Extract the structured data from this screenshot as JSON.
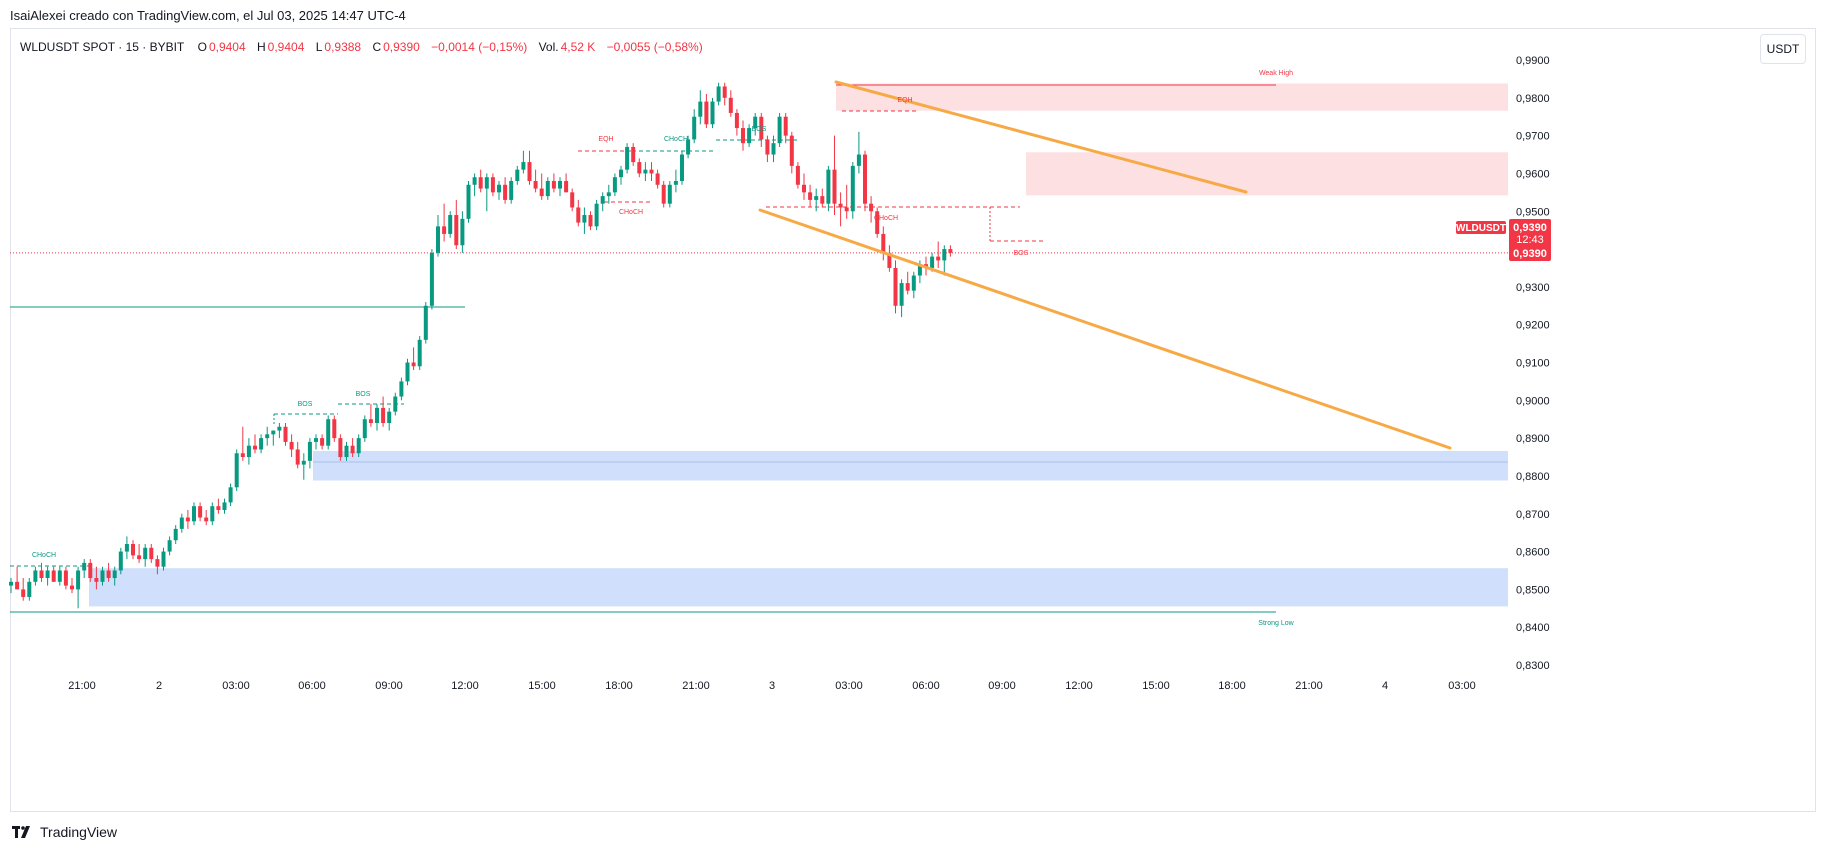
{
  "header": {
    "credit": "IsaiAlexei creado con TradingView.com, el Jul 03, 2025 14:47 UTC-4"
  },
  "legend": {
    "symbol": "WLDUSDT SPOT · 15 · BYBIT",
    "o_label": "O",
    "o_value": "0,9404",
    "h_label": "H",
    "h_value": "0,9404",
    "l_label": "L",
    "l_value": "0,9388",
    "c_label": "C",
    "c_value": "0,9390",
    "change": "−0,0014 (−0,15%)",
    "vol_label": "Vol.",
    "vol_value": "4,52 K",
    "vol_change": "−0,0055 (−0,58%)"
  },
  "unit_button": "USDT",
  "footer": {
    "brand": "TradingView"
  },
  "colors": {
    "up": "#089981",
    "down": "#f23645",
    "channel": "#f7a945",
    "demand": "#cfdffc",
    "supply": "#fde0e2"
  },
  "price_tag": {
    "symbol": "WLDUSDT",
    "price": "0,9390",
    "countdown": "12:43",
    "price2": "0,9390"
  },
  "chart_data": {
    "type": "candlestick",
    "y_axis": {
      "range": [
        0.826,
        0.994
      ],
      "ticks": [
        "0,9900",
        "0,9800",
        "0,9700",
        "0,9600",
        "0,9500",
        "0,9400",
        "0,9300",
        "0,9200",
        "0,9100",
        "0,9000",
        "0,8900",
        "0,8800",
        "0,8700",
        "0,8600",
        "0,8500",
        "0,8400",
        "0,8300"
      ]
    },
    "x_axis": {
      "ticks": [
        "21:00",
        "2",
        "03:00",
        "06:00",
        "09:00",
        "12:00",
        "15:00",
        "18:00",
        "21:00",
        "3",
        "03:00",
        "06:00",
        "09:00",
        "12:00",
        "15:00",
        "18:00",
        "21:00",
        "4",
        "03:00"
      ]
    },
    "last_price": 0.939,
    "candles": [
      [
        0.851,
        0.853,
        0.849,
        0.852
      ],
      [
        0.852,
        0.856,
        0.85,
        0.85
      ],
      [
        0.85,
        0.853,
        0.847,
        0.848
      ],
      [
        0.848,
        0.853,
        0.847,
        0.852
      ],
      [
        0.852,
        0.856,
        0.851,
        0.855
      ],
      [
        0.855,
        0.857,
        0.852,
        0.853
      ],
      [
        0.853,
        0.856,
        0.851,
        0.855
      ],
      [
        0.855,
        0.856,
        0.852,
        0.852
      ],
      [
        0.852,
        0.856,
        0.851,
        0.855
      ],
      [
        0.855,
        0.856,
        0.85,
        0.851
      ],
      [
        0.851,
        0.853,
        0.849,
        0.85
      ],
      [
        0.85,
        0.856,
        0.845,
        0.855
      ],
      [
        0.855,
        0.858,
        0.853,
        0.857
      ],
      [
        0.857,
        0.858,
        0.852,
        0.853
      ],
      [
        0.853,
        0.856,
        0.85,
        0.852
      ],
      [
        0.852,
        0.856,
        0.851,
        0.855
      ],
      [
        0.855,
        0.857,
        0.852,
        0.853
      ],
      [
        0.853,
        0.856,
        0.851,
        0.855
      ],
      [
        0.855,
        0.861,
        0.854,
        0.86
      ],
      [
        0.86,
        0.864,
        0.858,
        0.862
      ],
      [
        0.862,
        0.863,
        0.858,
        0.859
      ],
      [
        0.859,
        0.862,
        0.857,
        0.858
      ],
      [
        0.858,
        0.862,
        0.856,
        0.861
      ],
      [
        0.861,
        0.862,
        0.857,
        0.858
      ],
      [
        0.858,
        0.859,
        0.854,
        0.856
      ],
      [
        0.856,
        0.861,
        0.855,
        0.86
      ],
      [
        0.86,
        0.864,
        0.859,
        0.863
      ],
      [
        0.863,
        0.867,
        0.862,
        0.866
      ],
      [
        0.866,
        0.87,
        0.865,
        0.869
      ],
      [
        0.869,
        0.871,
        0.866,
        0.868
      ],
      [
        0.868,
        0.873,
        0.867,
        0.872
      ],
      [
        0.872,
        0.873,
        0.868,
        0.869
      ],
      [
        0.869,
        0.871,
        0.867,
        0.868
      ],
      [
        0.868,
        0.873,
        0.867,
        0.872
      ],
      [
        0.872,
        0.874,
        0.87,
        0.871
      ],
      [
        0.871,
        0.874,
        0.87,
        0.873
      ],
      [
        0.873,
        0.878,
        0.872,
        0.877
      ],
      [
        0.877,
        0.887,
        0.876,
        0.886
      ],
      [
        0.886,
        0.893,
        0.884,
        0.885
      ],
      [
        0.885,
        0.89,
        0.883,
        0.888
      ],
      [
        0.888,
        0.891,
        0.886,
        0.887
      ],
      [
        0.887,
        0.891,
        0.886,
        0.89
      ],
      [
        0.89,
        0.893,
        0.888,
        0.891
      ],
      [
        0.891,
        0.892,
        0.888,
        0.892
      ],
      [
        0.892,
        0.894,
        0.89,
        0.893
      ],
      [
        0.893,
        0.894,
        0.888,
        0.889
      ],
      [
        0.889,
        0.891,
        0.885,
        0.887
      ],
      [
        0.887,
        0.889,
        0.882,
        0.883
      ],
      [
        0.883,
        0.886,
        0.879,
        0.884
      ],
      [
        0.884,
        0.89,
        0.882,
        0.889
      ],
      [
        0.889,
        0.891,
        0.887,
        0.89
      ],
      [
        0.89,
        0.891,
        0.887,
        0.888
      ],
      [
        0.888,
        0.896,
        0.887,
        0.895
      ],
      [
        0.895,
        0.896,
        0.889,
        0.89
      ],
      [
        0.89,
        0.891,
        0.884,
        0.885
      ],
      [
        0.885,
        0.889,
        0.884,
        0.888
      ],
      [
        0.888,
        0.89,
        0.885,
        0.886
      ],
      [
        0.886,
        0.891,
        0.885,
        0.89
      ],
      [
        0.89,
        0.896,
        0.889,
        0.895
      ],
      [
        0.895,
        0.899,
        0.893,
        0.894
      ],
      [
        0.894,
        0.899,
        0.892,
        0.898
      ],
      [
        0.898,
        0.901,
        0.893,
        0.894
      ],
      [
        0.894,
        0.898,
        0.892,
        0.897
      ],
      [
        0.897,
        0.902,
        0.896,
        0.901
      ],
      [
        0.901,
        0.906,
        0.9,
        0.905
      ],
      [
        0.905,
        0.911,
        0.904,
        0.91
      ],
      [
        0.91,
        0.914,
        0.908,
        0.909
      ],
      [
        0.909,
        0.917,
        0.908,
        0.916
      ],
      [
        0.916,
        0.926,
        0.915,
        0.925
      ],
      [
        0.925,
        0.94,
        0.924,
        0.939
      ],
      [
        0.939,
        0.949,
        0.938,
        0.946
      ],
      [
        0.946,
        0.952,
        0.942,
        0.944
      ],
      [
        0.944,
        0.95,
        0.943,
        0.949
      ],
      [
        0.949,
        0.953,
        0.94,
        0.941
      ],
      [
        0.941,
        0.95,
        0.939,
        0.948
      ],
      [
        0.948,
        0.958,
        0.947,
        0.957
      ],
      [
        0.957,
        0.96,
        0.954,
        0.959
      ],
      [
        0.959,
        0.961,
        0.955,
        0.956
      ],
      [
        0.956,
        0.96,
        0.95,
        0.959
      ],
      [
        0.959,
        0.96,
        0.954,
        0.955
      ],
      [
        0.955,
        0.958,
        0.953,
        0.957
      ],
      [
        0.957,
        0.959,
        0.952,
        0.953
      ],
      [
        0.953,
        0.959,
        0.952,
        0.958
      ],
      [
        0.958,
        0.962,
        0.957,
        0.961
      ],
      [
        0.961,
        0.966,
        0.96,
        0.963
      ],
      [
        0.963,
        0.966,
        0.957,
        0.958
      ],
      [
        0.958,
        0.961,
        0.955,
        0.956
      ],
      [
        0.956,
        0.96,
        0.953,
        0.954
      ],
      [
        0.954,
        0.959,
        0.953,
        0.958
      ],
      [
        0.958,
        0.96,
        0.955,
        0.956
      ],
      [
        0.956,
        0.959,
        0.954,
        0.958
      ],
      [
        0.958,
        0.96,
        0.955,
        0.955
      ],
      [
        0.955,
        0.956,
        0.95,
        0.951
      ],
      [
        0.951,
        0.953,
        0.946,
        0.947
      ],
      [
        0.947,
        0.951,
        0.944,
        0.949
      ],
      [
        0.949,
        0.95,
        0.945,
        0.946
      ],
      [
        0.946,
        0.953,
        0.945,
        0.952
      ],
      [
        0.952,
        0.955,
        0.95,
        0.954
      ],
      [
        0.954,
        0.957,
        0.952,
        0.955
      ],
      [
        0.955,
        0.96,
        0.954,
        0.959
      ],
      [
        0.959,
        0.962,
        0.957,
        0.961
      ],
      [
        0.961,
        0.968,
        0.96,
        0.967
      ],
      [
        0.967,
        0.968,
        0.962,
        0.963
      ],
      [
        0.963,
        0.964,
        0.959,
        0.96
      ],
      [
        0.96,
        0.963,
        0.958,
        0.961
      ],
      [
        0.961,
        0.963,
        0.958,
        0.96
      ],
      [
        0.96,
        0.961,
        0.956,
        0.957
      ],
      [
        0.957,
        0.958,
        0.951,
        0.952
      ],
      [
        0.952,
        0.958,
        0.951,
        0.957
      ],
      [
        0.957,
        0.961,
        0.955,
        0.958
      ],
      [
        0.958,
        0.966,
        0.957,
        0.965
      ],
      [
        0.965,
        0.97,
        0.964,
        0.969
      ],
      [
        0.969,
        0.977,
        0.968,
        0.975
      ],
      [
        0.975,
        0.982,
        0.973,
        0.979
      ],
      [
        0.979,
        0.981,
        0.972,
        0.973
      ],
      [
        0.973,
        0.98,
        0.972,
        0.979
      ],
      [
        0.979,
        0.984,
        0.978,
        0.983
      ],
      [
        0.983,
        0.984,
        0.978,
        0.98
      ],
      [
        0.98,
        0.982,
        0.975,
        0.976
      ],
      [
        0.976,
        0.977,
        0.97,
        0.972
      ],
      [
        0.972,
        0.974,
        0.966,
        0.968
      ],
      [
        0.968,
        0.973,
        0.967,
        0.972
      ],
      [
        0.972,
        0.976,
        0.97,
        0.975
      ],
      [
        0.975,
        0.976,
        0.967,
        0.969
      ],
      [
        0.969,
        0.97,
        0.963,
        0.965
      ],
      [
        0.965,
        0.97,
        0.963,
        0.968
      ],
      [
        0.968,
        0.976,
        0.967,
        0.975
      ],
      [
        0.975,
        0.976,
        0.968,
        0.97
      ],
      [
        0.97,
        0.971,
        0.96,
        0.962
      ],
      [
        0.962,
        0.963,
        0.956,
        0.957
      ],
      [
        0.957,
        0.96,
        0.953,
        0.955
      ],
      [
        0.955,
        0.957,
        0.951,
        0.953
      ],
      [
        0.953,
        0.956,
        0.95,
        0.954
      ],
      [
        0.954,
        0.956,
        0.951,
        0.952
      ],
      [
        0.952,
        0.962,
        0.95,
        0.961
      ],
      [
        0.961,
        0.97,
        0.949,
        0.952
      ],
      [
        0.952,
        0.955,
        0.946,
        0.951
      ],
      [
        0.951,
        0.957,
        0.948,
        0.95
      ],
      [
        0.95,
        0.963,
        0.948,
        0.962
      ],
      [
        0.962,
        0.971,
        0.96,
        0.965
      ],
      [
        0.965,
        0.966,
        0.95,
        0.952
      ],
      [
        0.952,
        0.954,
        0.947,
        0.95
      ],
      [
        0.95,
        0.951,
        0.943,
        0.944
      ],
      [
        0.944,
        0.946,
        0.937,
        0.939
      ],
      [
        0.939,
        0.941,
        0.934,
        0.935
      ],
      [
        0.935,
        0.937,
        0.923,
        0.925
      ],
      [
        0.925,
        0.932,
        0.922,
        0.931
      ],
      [
        0.931,
        0.934,
        0.928,
        0.929
      ],
      [
        0.929,
        0.934,
        0.927,
        0.933
      ],
      [
        0.933,
        0.937,
        0.931,
        0.936
      ],
      [
        0.936,
        0.938,
        0.933,
        0.935
      ],
      [
        0.935,
        0.939,
        0.934,
        0.938
      ],
      [
        0.938,
        0.942,
        0.935,
        0.937
      ],
      [
        0.937,
        0.941,
        0.933,
        0.94
      ],
      [
        0.94,
        0.941,
        0.938,
        0.939
      ]
    ],
    "annotations": {
      "supply_zones": [
        {
          "from": 0.9838,
          "to": 0.9766
        },
        {
          "from": 0.9656,
          "to": 0.9542
        }
      ],
      "demand_zones": [
        {
          "from": 0.8866,
          "to": 0.8788
        },
        {
          "from": 0.8556,
          "to": 0.8455
        }
      ],
      "labels": [
        {
          "text": "Weak High",
          "price": 0.9838,
          "color": "#f23645"
        },
        {
          "text": "Strong Low",
          "price": 0.8445,
          "color": "#089981"
        },
        {
          "text": "CHoCH",
          "price": 0.8563,
          "color": "#089981"
        },
        {
          "text": "BOS",
          "price": 0.8952,
          "color": "#089981"
        },
        {
          "text": "BOS",
          "price": 0.899,
          "color": "#089981"
        },
        {
          "text": "EQH",
          "price": 0.965,
          "color": "#f23645"
        },
        {
          "text": "CHoCH",
          "price": 0.965,
          "color": "#089981"
        },
        {
          "text": "BOS",
          "price": 0.9685,
          "color": "#089981"
        },
        {
          "text": "CHoCH",
          "price": 0.9522,
          "color": "#f23645"
        },
        {
          "text": "EQH",
          "price": 0.976,
          "color": "#f23645"
        },
        {
          "text": "CHoCH",
          "price": 0.951,
          "color": "#f23645"
        },
        {
          "text": "BOS",
          "price": 0.942,
          "color": "#f23645"
        }
      ]
    }
  }
}
